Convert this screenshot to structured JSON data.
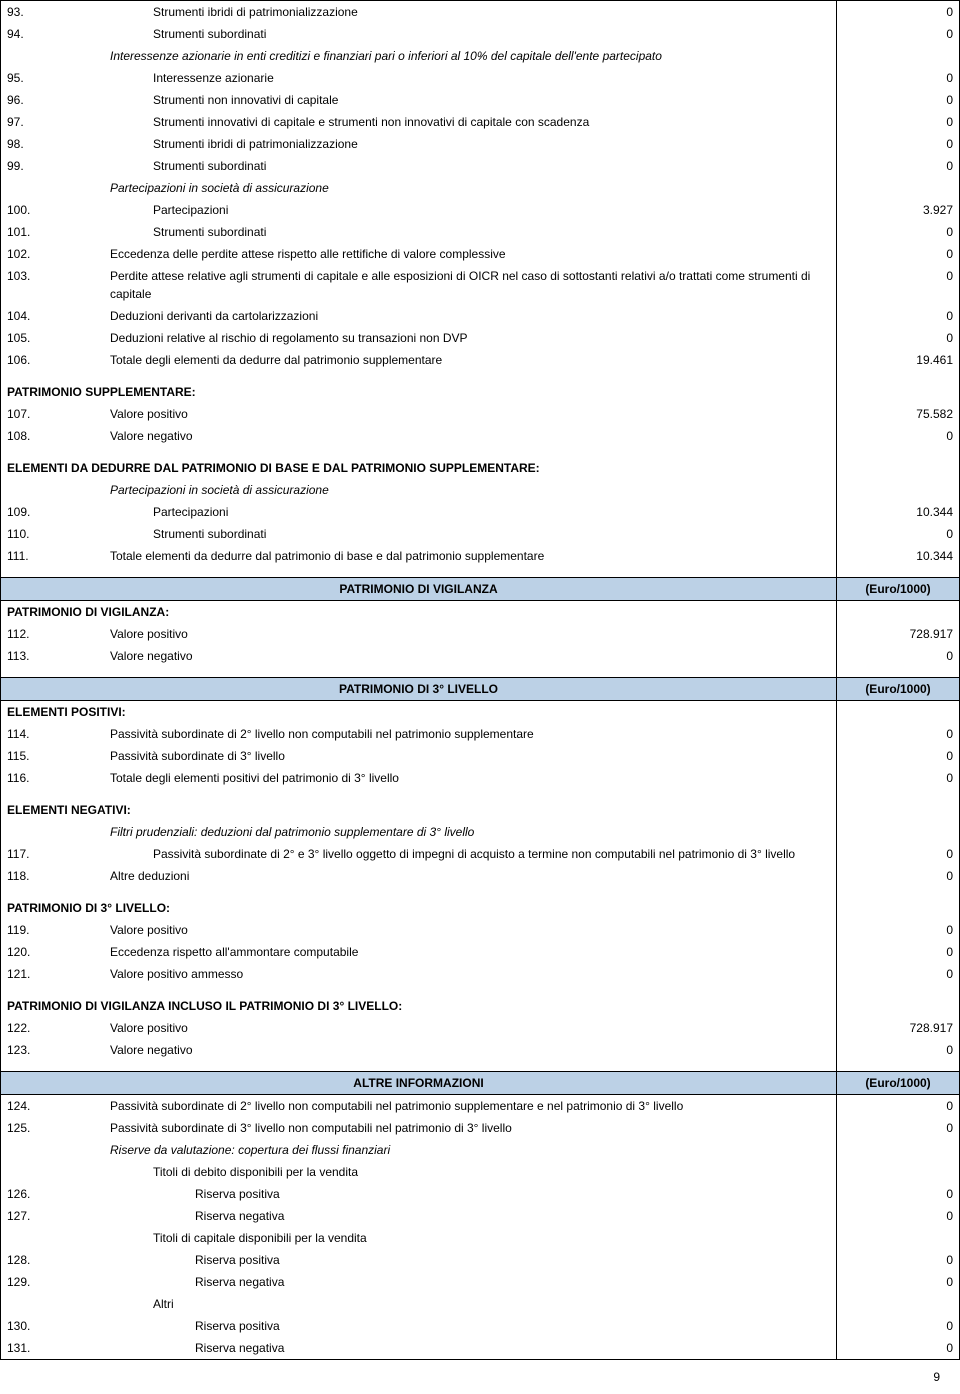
{
  "header_euro": "(Euro/1000)",
  "block1": [
    {
      "n": "93.",
      "desc": "Strumenti ibridi di patrimonializzazione",
      "val": "0",
      "indent": 2
    },
    {
      "n": "94.",
      "desc": "Strumenti subordinati",
      "val": "0",
      "indent": 2
    },
    {
      "n": "",
      "desc": "Interessenze azionarie in enti creditizi e finanziari pari o inferiori al 10% del capitale dell'ente partecipato",
      "val": "",
      "italic": true,
      "indent": 1
    },
    {
      "n": "95.",
      "desc": "Interessenze azionarie",
      "val": "0",
      "indent": 2
    },
    {
      "n": "96.",
      "desc": "Strumenti non innovativi di capitale",
      "val": "0",
      "indent": 2
    },
    {
      "n": "97.",
      "desc": "Strumenti innovativi di capitale e strumenti non innovativi di capitale con scadenza",
      "val": "0",
      "indent": 2
    },
    {
      "n": "98.",
      "desc": "Strumenti ibridi di patrimonializzazione",
      "val": "0",
      "indent": 2
    },
    {
      "n": "99.",
      "desc": "Strumenti subordinati",
      "val": "0",
      "indent": 2
    },
    {
      "n": "",
      "desc": "Partecipazioni in società di assicurazione",
      "val": "",
      "italic": true,
      "indent": 1
    },
    {
      "n": "100.",
      "desc": "Partecipazioni",
      "val": "3.927",
      "indent": 2
    },
    {
      "n": "101.",
      "desc": "Strumenti subordinati",
      "val": "0",
      "indent": 2
    },
    {
      "n": "102.",
      "desc": "Eccedenza delle perdite attese rispetto alle rettifiche di valore complessive",
      "val": "0",
      "indent": 1
    },
    {
      "n": "103.",
      "desc": "Perdite attese relative agli strumenti di capitale e alle esposizioni di OICR nel caso di sottostanti relativi a/o trattati come strumenti di capitale",
      "val": "0",
      "indent": 1
    },
    {
      "n": "104.",
      "desc": "Deduzioni derivanti da cartolarizzazioni",
      "val": "0",
      "indent": 1
    },
    {
      "n": "105.",
      "desc": "Deduzioni relative al rischio di regolamento su transazioni non DVP",
      "val": "0",
      "indent": 1
    },
    {
      "n": "106.",
      "desc": "Totale degli elementi da dedurre dal patrimonio supplementare",
      "val": "19.461",
      "indent": 1
    }
  ],
  "sec_supp_title": "PATRIMONIO SUPPLEMENTARE:",
  "supp": [
    {
      "n": "107.",
      "desc": "Valore positivo",
      "val": "75.582",
      "indent": 1
    },
    {
      "n": "108.",
      "desc": "Valore negativo",
      "val": "0",
      "indent": 1
    }
  ],
  "sec_ded_title": "ELEMENTI DA DEDURRE DAL PATRIMONIO DI BASE E DAL PATRIMONIO SUPPLEMENTARE:",
  "ded_sub": "Partecipazioni in società di assicurazione",
  "ded": [
    {
      "n": "109.",
      "desc": "Partecipazioni",
      "val": "10.344",
      "indent": 2
    },
    {
      "n": "110.",
      "desc": "Strumenti subordinati",
      "val": "0",
      "indent": 2
    },
    {
      "n": "111.",
      "desc": "Totale elementi da dedurre dal patrimonio di base e dal patrimonio supplementare",
      "val": "10.344",
      "indent": 1
    }
  ],
  "hdr_vigilanza": "PATRIMONIO DI VIGILANZA",
  "vig_title": "PATRIMONIO DI VIGILANZA:",
  "vig": [
    {
      "n": "112.",
      "desc": "Valore positivo",
      "val": "728.917",
      "indent": 1
    },
    {
      "n": "113.",
      "desc": "Valore negativo",
      "val": "0",
      "indent": 1
    }
  ],
  "hdr_3liv": "PATRIMONIO DI 3° LIVELLO",
  "pos_title": "ELEMENTI  POSITIVI:",
  "pos": [
    {
      "n": "114.",
      "desc": "Passività subordinate di 2° livello non computabili nel patrimonio supplementare",
      "val": "0",
      "indent": 1
    },
    {
      "n": "115.",
      "desc": "Passività subordinate di 3° livello",
      "val": "0",
      "indent": 1
    },
    {
      "n": "116.",
      "desc": "Totale degli elementi positivi del patrimonio di 3° livello",
      "val": "0",
      "indent": 1
    }
  ],
  "neg_title": "ELEMENTI  NEGATIVI:",
  "neg_filter": "Filtri prudenziali: deduzioni dal patrimonio supplementare di 3° livello",
  "neg": [
    {
      "n": "117.",
      "desc": "Passività subordinate di 2° e 3° livello oggetto di impegni di acquisto a termine non computabili nel patrimonio di 3° livello",
      "val": "0",
      "indent": 2
    },
    {
      "n": "118.",
      "desc": "Altre deduzioni",
      "val": "0",
      "indent": 1
    }
  ],
  "p3_title": "PATRIMONIO DI 3° LIVELLO:",
  "p3": [
    {
      "n": "119.",
      "desc": "Valore positivo",
      "val": "0",
      "indent": 1
    },
    {
      "n": "120.",
      "desc": "Eccedenza rispetto all'ammontare computabile",
      "val": "0",
      "indent": 1
    },
    {
      "n": "121.",
      "desc": "Valore positivo ammesso",
      "val": "0",
      "indent": 1
    }
  ],
  "pv3_title": "PATRIMONIO DI VIGILANZA INCLUSO IL PATRIMONIO DI 3° LIVELLO:",
  "pv3": [
    {
      "n": "122.",
      "desc": "Valore positivo",
      "val": "728.917",
      "indent": 1
    },
    {
      "n": "123.",
      "desc": "Valore negativo",
      "val": "0",
      "indent": 1
    }
  ],
  "hdr_altre": "ALTRE INFORMAZIONI",
  "altre1": [
    {
      "n": "124.",
      "desc": "Passività subordinate di 2° livello non computabili nel patrimonio supplementare e nel patrimonio di 3° livello",
      "val": "0",
      "indent": 1
    },
    {
      "n": "125.",
      "desc": "Passività subordinate di 3° livello non computabili nel patrimonio di 3° livello",
      "val": "0",
      "indent": 1
    }
  ],
  "riserve_title": "Riserve da valutazione: copertura dei flussi finanziari",
  "titoli_deb": "Titoli di debito disponibili per la vendita",
  "titoli_cap": "Titoli di capitale disponibili per la vendita",
  "altri": "Altri",
  "ris": [
    {
      "n": "126.",
      "desc": "Riserva positiva",
      "val": "0",
      "indent": 3
    },
    {
      "n": "127.",
      "desc": "Riserva negativa",
      "val": "0",
      "indent": 3
    },
    {
      "n": "128.",
      "desc": "Riserva positiva",
      "val": "0",
      "indent": 3
    },
    {
      "n": "129.",
      "desc": "Riserva negativa",
      "val": "0",
      "indent": 3
    },
    {
      "n": "130.",
      "desc": "Riserva positiva",
      "val": "0",
      "indent": 3
    },
    {
      "n": "131.",
      "desc": "Riserva negativa",
      "val": "0",
      "indent": 3
    }
  ],
  "pagenum": "9"
}
